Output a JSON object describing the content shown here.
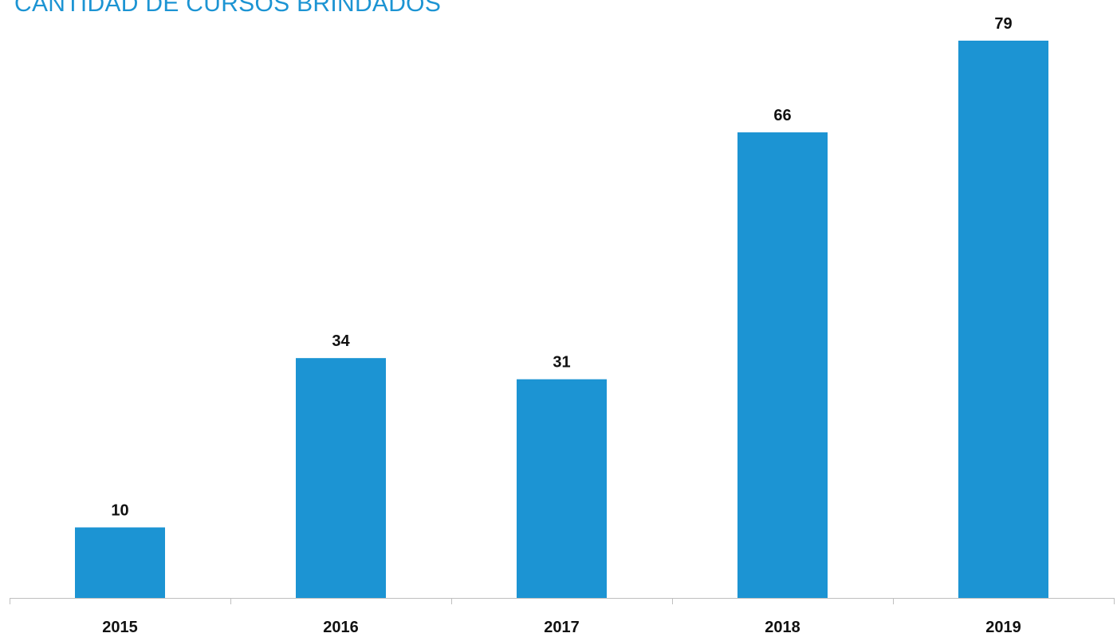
{
  "chart_data": {
    "type": "bar",
    "title": "CANTIDAD DE CURSOS BRINDADOS",
    "categories": [
      "2015",
      "2016",
      "2017",
      "2018",
      "2019"
    ],
    "values": [
      10,
      34,
      31,
      66,
      79
    ],
    "xlabel": "",
    "ylabel": "",
    "ylim": [
      0,
      79
    ],
    "grid": false,
    "legend": "none",
    "bar_color": "#1c94d3",
    "title_color": "#1c94d3"
  }
}
